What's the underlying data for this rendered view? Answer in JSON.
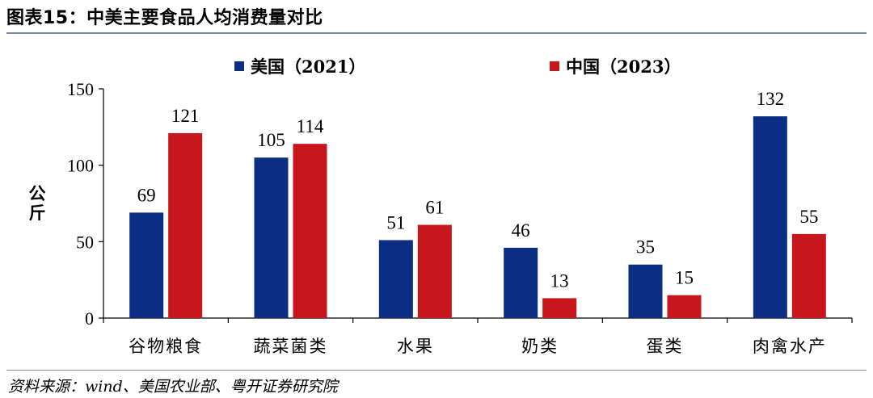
{
  "header": {
    "title": "图表15：中美主要食品人均消费量对比"
  },
  "footer": {
    "source": "资料来源：wind、美国农业部、粤开证券研究院"
  },
  "chart_data": {
    "type": "bar",
    "categories": [
      "谷物粮食",
      "蔬菜菌类",
      "水果",
      "奶类",
      "蛋类",
      "肉禽水产"
    ],
    "series": [
      {
        "name": "美国（2021）",
        "color": "#0b2d83",
        "values": [
          69,
          105,
          51,
          46,
          35,
          132
        ]
      },
      {
        "name": "中国（2023）",
        "color": "#c8161d",
        "values": [
          121,
          114,
          61,
          13,
          15,
          55
        ]
      }
    ],
    "ylabel": "公斤",
    "ylim": [
      0,
      150
    ],
    "yticks": [
      0,
      50,
      100,
      150
    ],
    "grid": false,
    "legend_position": "top"
  }
}
